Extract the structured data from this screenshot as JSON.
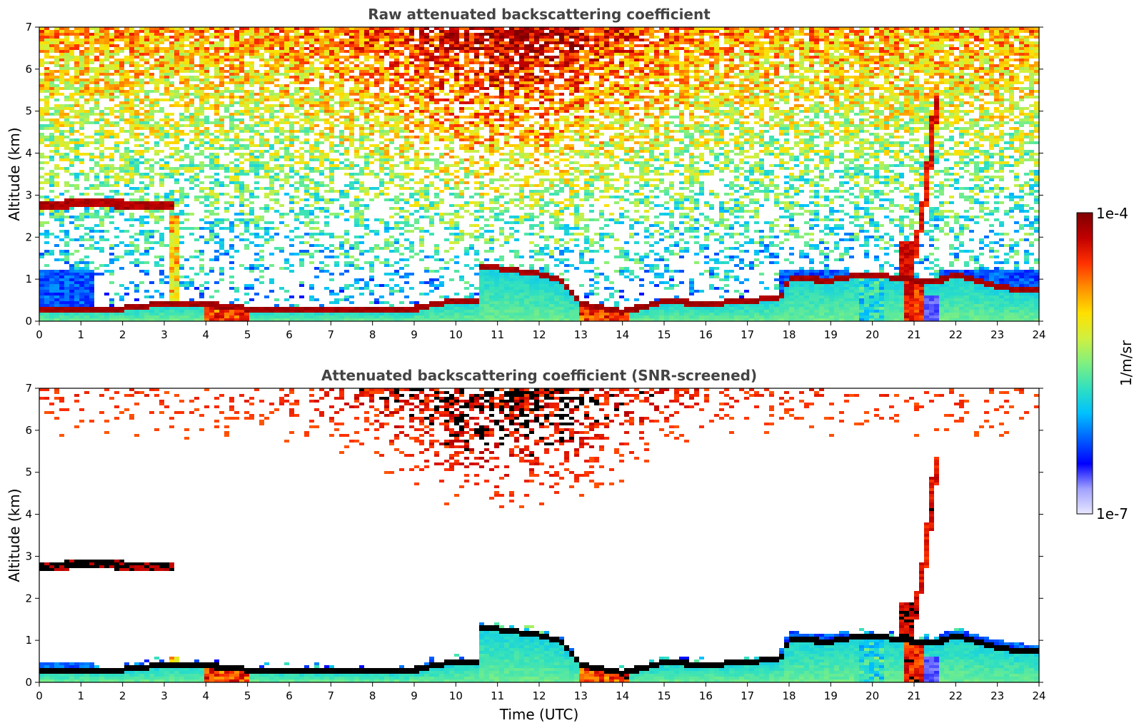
{
  "chart_data": [
    {
      "type": "heatmap",
      "title": "Raw attenuated backscattering coefficient",
      "xlabel": "",
      "ylabel": "Altitude (km)",
      "xlim": [
        0,
        24
      ],
      "ylim": [
        0,
        7
      ],
      "x_ticks": [
        "0",
        "1",
        "2",
        "3",
        "4",
        "5",
        "6",
        "7",
        "8",
        "9",
        "10",
        "11",
        "12",
        "13",
        "14",
        "15",
        "16",
        "17",
        "18",
        "19",
        "20",
        "21",
        "22",
        "23",
        "24"
      ],
      "y_ticks": [
        "0",
        "1",
        "2",
        "3",
        "4",
        "5",
        "6",
        "7"
      ],
      "layers": {
        "boundary_layer_top": [
          [
            0,
            0.28
          ],
          [
            1.3,
            0.28
          ],
          [
            2.0,
            0.28
          ],
          [
            3.0,
            0.4
          ],
          [
            3.5,
            0.42
          ],
          [
            4.0,
            0.38
          ],
          [
            5.0,
            0.28
          ],
          [
            6.0,
            0.25
          ],
          [
            7.0,
            0.25
          ],
          [
            8.0,
            0.22
          ],
          [
            8.8,
            0.22
          ],
          [
            9.5,
            0.4
          ],
          [
            10.0,
            0.45
          ],
          [
            10.5,
            0.45
          ],
          [
            10.6,
            1.25
          ],
          [
            11.0,
            1.25
          ],
          [
            12.0,
            1.1
          ],
          [
            12.5,
            0.95
          ],
          [
            13.0,
            0.4
          ],
          [
            14.0,
            0.2
          ],
          [
            15.0,
            0.45
          ],
          [
            16.0,
            0.4
          ],
          [
            17.0,
            0.45
          ],
          [
            17.8,
            0.55
          ],
          [
            18.0,
            1.0
          ],
          [
            19.0,
            0.95
          ],
          [
            19.8,
            1.1
          ],
          [
            21.5,
            0.9
          ],
          [
            22.0,
            1.1
          ],
          [
            23.0,
            0.8
          ],
          [
            23.8,
            0.7
          ]
        ],
        "cloud_top_km": [
          [
            0.0,
            2.75
          ],
          [
            1.3,
            2.8
          ],
          [
            2.5,
            2.78
          ]
        ],
        "cirrus_streak": [
          [
            21.0,
            1.6
          ],
          [
            21.2,
            2.5
          ],
          [
            21.4,
            4.0
          ],
          [
            21.5,
            5.0
          ],
          [
            21.55,
            5.3
          ]
        ],
        "noise_peak_hour": 11.2
      }
    },
    {
      "type": "heatmap",
      "title": "Attenuated backscattering coefficient (SNR-screened)",
      "xlabel": "Time (UTC)",
      "ylabel": "Altitude (km)",
      "xlim": [
        0,
        24
      ],
      "ylim": [
        0,
        7
      ],
      "x_ticks": [
        "0",
        "1",
        "2",
        "3",
        "4",
        "5",
        "6",
        "7",
        "8",
        "9",
        "10",
        "11",
        "12",
        "13",
        "14",
        "15",
        "16",
        "17",
        "18",
        "19",
        "20",
        "21",
        "22",
        "23",
        "24"
      ],
      "y_ticks": [
        "0",
        "1",
        "2",
        "3",
        "4",
        "5",
        "6",
        "7"
      ]
    }
  ],
  "colorbar": {
    "label": "1/m/sr",
    "max_label": "1e-4",
    "min_label": "1e-7",
    "scale": "log",
    "colormap": [
      "#e8e8ff",
      "#a0a0ff",
      "#0000ff",
      "#0060ff",
      "#00c0ff",
      "#30e0c0",
      "#80f080",
      "#d0f040",
      "#ffe000",
      "#ff9000",
      "#ff3000",
      "#c00000",
      "#800000"
    ]
  }
}
